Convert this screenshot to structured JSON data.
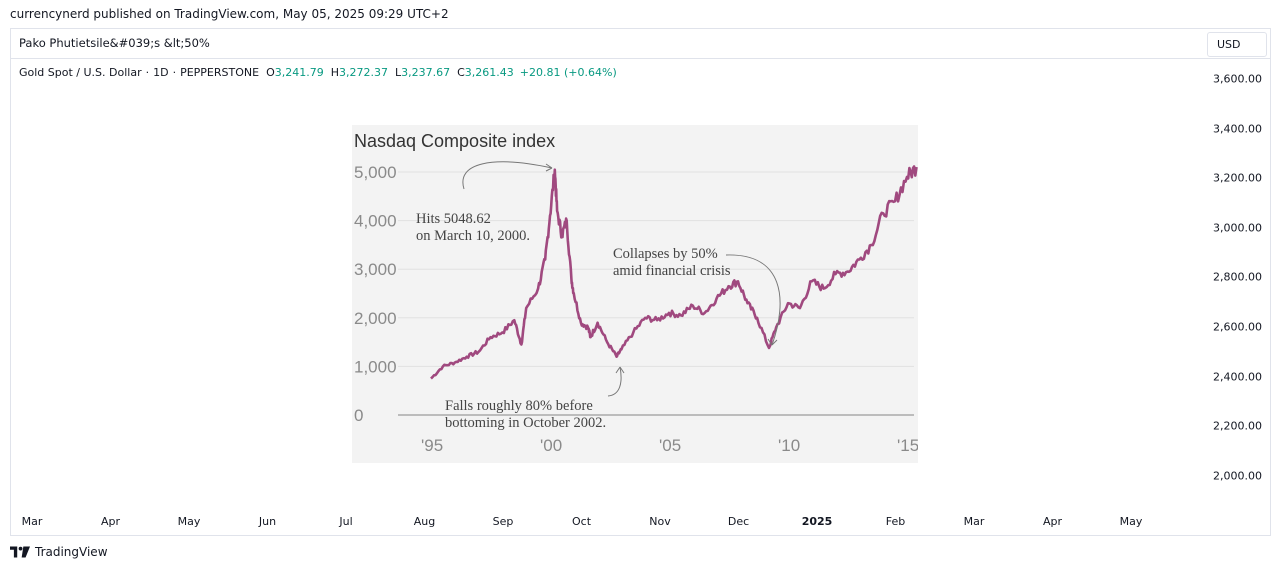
{
  "publish_line": "currencynerd published on TradingView.com, May 05, 2025 09:29 UTC+2",
  "idea_title": "Pako Phutietsile&#039;s &lt;50%",
  "currency_button": "USD",
  "legend": {
    "symbol": "Gold Spot / U.S. Dollar",
    "interval": "1D",
    "broker": "PEPPERSTONE",
    "open_label": "O",
    "open": "3,241.79",
    "high_label": "H",
    "high": "3,272.37",
    "low_label": "L",
    "low": "3,237.67",
    "close_label": "C",
    "close": "3,261.43",
    "change": "+20.81 (+0.64%)",
    "dot": "·"
  },
  "price_axis": [
    "3,600.00",
    "3,400.00",
    "3,200.00",
    "3,000.00",
    "2,800.00",
    "2,600.00",
    "2,400.00",
    "2,200.00",
    "2,000.00"
  ],
  "time_axis": [
    {
      "label": "Mar",
      "bold": false
    },
    {
      "label": "Apr",
      "bold": false
    },
    {
      "label": "May",
      "bold": false
    },
    {
      "label": "Jun",
      "bold": false
    },
    {
      "label": "Jul",
      "bold": false
    },
    {
      "label": "Aug",
      "bold": false
    },
    {
      "label": "Sep",
      "bold": false
    },
    {
      "label": "Oct",
      "bold": false
    },
    {
      "label": "Nov",
      "bold": false
    },
    {
      "label": "Dec",
      "bold": false
    },
    {
      "label": "2025",
      "bold": true
    },
    {
      "label": "Feb",
      "bold": false
    },
    {
      "label": "Mar",
      "bold": false
    },
    {
      "label": "Apr",
      "bold": false
    },
    {
      "label": "May",
      "bold": false
    }
  ],
  "embedded_chart": {
    "title": "Nasdaq Composite index",
    "y_ticks": [
      "5,000",
      "4,000",
      "3,000",
      "2,000",
      "1,000",
      "0"
    ],
    "x_ticks": [
      "'95",
      "'00",
      "'05",
      "'10",
      "'15"
    ],
    "annotation_peak": [
      "Hits 5048.62",
      "on March 10, 2000."
    ],
    "annotation_crisis": [
      "Collapses by 50%",
      "amid financial crisis"
    ],
    "annotation_bottom": [
      "Falls roughly 80% before",
      "bottoming in October 2002."
    ],
    "line_color": "#a0497f"
  },
  "chart_data": {
    "type": "line",
    "title": "Nasdaq Composite index",
    "xlabel": "",
    "ylabel": "",
    "ylim": [
      0,
      5000
    ],
    "xlim": [
      1995,
      2015.5
    ],
    "grid": true,
    "series": [
      {
        "x": [
          1995.0,
          1995.5,
          1996.0,
          1996.5,
          1997.0,
          1997.5,
          1998.0,
          1998.5,
          1998.8,
          1999.0,
          1999.5,
          1999.8,
          2000.0,
          2000.2,
          2000.3,
          2000.5,
          2000.7,
          2000.9,
          2001.0,
          2001.3,
          2001.6,
          2001.7,
          2002.0,
          2002.4,
          2002.8,
          2003.0,
          2003.5,
          2004.0,
          2004.5,
          2005.0,
          2005.5,
          2006.0,
          2006.5,
          2007.0,
          2007.5,
          2007.9,
          2008.3,
          2008.7,
          2009.2,
          2009.5,
          2010.0,
          2010.5,
          2011.0,
          2011.5,
          2012.0,
          2012.5,
          2013.0,
          2013.5,
          2014.0,
          2014.5,
          2015.0,
          2015.4
        ],
        "y": [
          750,
          1000,
          1080,
          1200,
          1300,
          1600,
          1700,
          1950,
          1450,
          2200,
          2600,
          3200,
          4100,
          5048,
          4200,
          3700,
          4000,
          2800,
          2500,
          1900,
          1800,
          1600,
          1900,
          1500,
          1200,
          1350,
          1700,
          2000,
          1950,
          2100,
          2050,
          2250,
          2100,
          2400,
          2650,
          2750,
          2300,
          2000,
          1380,
          1800,
          2300,
          2200,
          2750,
          2600,
          2900,
          2950,
          3200,
          3500,
          4150,
          4400,
          4900,
          5100
        ]
      }
    ]
  }
}
